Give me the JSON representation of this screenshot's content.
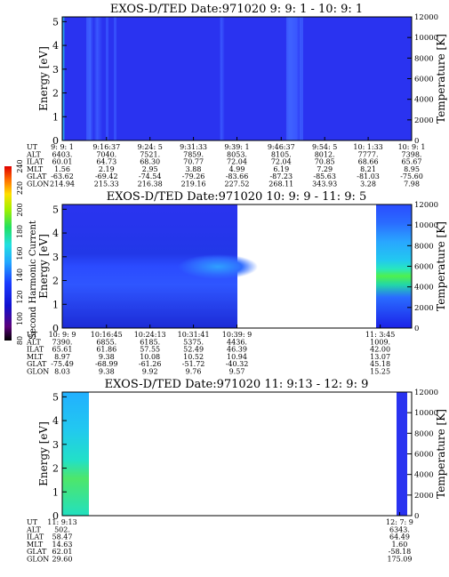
{
  "chart_data": [
    {
      "type": "heatmap",
      "title": "EXOS-D/TED   Date:971020  9: 9: 1 - 10: 9: 1",
      "ylabel": "Energy [eV]",
      "y2label": "Temperature [K]",
      "ylim": [
        0,
        5.2
      ],
      "y2lim": [
        0,
        12000
      ],
      "yticks": [
        "0",
        "1",
        "2",
        "3",
        "4",
        "5"
      ],
      "y2ticks": [
        "0",
        "2000",
        "4000",
        "6000",
        "8000",
        "10000",
        "12000"
      ],
      "time_range": [
        "9:09:01",
        "10:09:01"
      ],
      "coverage": [
        [
          "9:09:01",
          "10:09:01"
        ]
      ],
      "features": "uniform low values (dark blue) with brighter blue vertical streaks near 9:09, 9:13, 9:14, 9:36, 9:48, 9:49",
      "ephemeris": {
        "labels": [
          "UT",
          "ALT",
          "ILAT",
          "MLT",
          "GLAT",
          "GLON"
        ],
        "columns": [
          [
            "9: 9: 1",
            "6403.",
            "60.01",
            "1.56",
            "-63.62",
            "214.94"
          ],
          [
            "9:16:37",
            "7040.",
            "64.73",
            "2.19",
            "-69.42",
            "215.33"
          ],
          [
            "9:24: 5",
            "7521.",
            "68.30",
            "2.95",
            "-74.54",
            "216.38"
          ],
          [
            "9:31:33",
            "7859.",
            "70.77",
            "3.88",
            "-79.26",
            "219.16"
          ],
          [
            "9:39: 1",
            "8053.",
            "72.04",
            "4.99",
            "-83.66",
            "227.52"
          ],
          [
            "9:46:37",
            "8105.",
            "72.04",
            "6.19",
            "-87.23",
            "268.11"
          ],
          [
            "9:54: 5",
            "8012.",
            "70.85",
            "7.29",
            "-85.63",
            "343.93"
          ],
          [
            "10: 1:33",
            "7777.",
            "68.66",
            "8.21",
            "-81.03",
            "3.28"
          ],
          [
            "10: 9: 1",
            "7398.",
            "65.67",
            "8.95",
            "-75.60",
            "7.98"
          ]
        ]
      }
    },
    {
      "type": "heatmap",
      "title": "EXOS-D/TED   Date:971020  10: 9: 9 - 11: 9: 5",
      "ylabel": "Energy [eV]",
      "y2label": "Temperature [K]",
      "ylim": [
        0,
        5.2
      ],
      "y2lim": [
        0,
        12000
      ],
      "yticks": [
        "0",
        "1",
        "2",
        "3",
        "4",
        "5"
      ],
      "y2ticks": [
        "0",
        "2000",
        "4000",
        "6000",
        "8000",
        "10000",
        "12000"
      ],
      "time_range": [
        "10:09:09",
        "11:09:05"
      ],
      "coverage": [
        [
          "10:09:09",
          "10:39:09"
        ],
        [
          "11:03:45",
          "11:09:05"
        ]
      ],
      "features": "enhancement near 2 eV spreading from ~10:25 to 10:39; strong green/cyan band at 2-3 eV with yellow patches after 11:03",
      "ephemeris": {
        "labels": [
          "UT",
          "ALT",
          "ILAT",
          "MLT",
          "GLAT",
          "GLON"
        ],
        "columns": [
          [
            "10: 9: 9",
            "7390.",
            "65.61",
            "8.97",
            "-75.49",
            "8.03"
          ],
          [
            "10:16:45",
            "6855.",
            "61.86",
            "9.38",
            "-68.99",
            "9.38"
          ],
          [
            "10:24:13",
            "6185.",
            "57.55",
            "10.08",
            "-61.26",
            "9.92"
          ],
          [
            "10:31:41",
            "5375.",
            "52.49",
            "10.52",
            "-51.72",
            "9.76"
          ],
          [
            "10:39: 9",
            "4436.",
            "46.39",
            "10.94",
            "-40.32",
            "9.57"
          ],
          [
            "11: 3:45",
            "1009.",
            "42.00",
            "13.07",
            "45.18",
            "15.25"
          ]
        ]
      }
    },
    {
      "type": "heatmap",
      "title": "EXOS-D/TED   Date:971020  11: 9:13 - 12: 9: 9",
      "ylabel": "Energy [eV]",
      "y2label": "Temperature [K]",
      "ylim": [
        0,
        5.2
      ],
      "y2lim": [
        0,
        12000
      ],
      "yticks": [
        "0",
        "1",
        "2",
        "3",
        "4",
        "5"
      ],
      "y2ticks": [
        "0",
        "2000",
        "4000",
        "6000",
        "8000",
        "10000",
        "12000"
      ],
      "time_range": [
        "11:09:13",
        "12:09:09"
      ],
      "coverage": [
        [
          "11:09:13",
          "11:12:30"
        ],
        [
          "12:07:00",
          "12:09:09"
        ]
      ],
      "features": "cyan/green high values in first minutes; blue strip at end",
      "ephemeris": {
        "labels": [
          "UT",
          "ALT",
          "ILAT",
          "MLT",
          "GLAT",
          "GLON"
        ],
        "columns": [
          [
            "11: 9:13",
            "502.",
            "58.47",
            "14.63",
            "62.01",
            "29.60"
          ],
          [
            "12: 7: 9",
            "6343.",
            "64.49",
            "1.60",
            "-58.18",
            "175.09"
          ]
        ]
      }
    },
    {
      "type": "colorbar",
      "label": "Second Harmonic Current",
      "range": [
        80,
        240
      ],
      "ticks": [
        "80",
        "100",
        "120",
        "140",
        "160",
        "180",
        "200",
        "220",
        "240"
      ]
    }
  ]
}
